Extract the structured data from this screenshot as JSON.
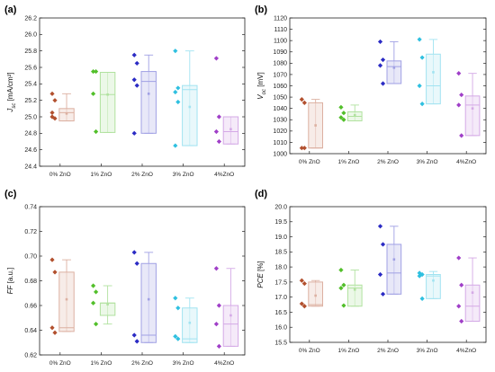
{
  "chart_data": [
    {
      "type": "box",
      "panel_label": "(a)",
      "ylabel": "J_sc [mA/cm²]",
      "ylabel_main": "J",
      "ylabel_sub": "sc",
      "ylabel_rest": " [mA/cm²]",
      "categories": [
        "0% ZnO",
        "1% ZnO",
        "2% ZnO",
        "3% ZnO",
        "4%ZnO"
      ],
      "ylim": [
        24.4,
        26.2
      ],
      "yticks": [
        "24.4",
        "24.6",
        "24.8",
        "25.0",
        "25.2",
        "25.4",
        "25.6",
        "25.8",
        "26.0",
        "26.2"
      ],
      "colors": [
        "#b2502e",
        "#52bf2a",
        "#2b2bc4",
        "#2fc0e0",
        "#a03fc8"
      ],
      "boxes": [
        {
          "q1": 24.95,
          "median": 25.05,
          "q3": 25.1,
          "whisker_low": 24.95,
          "whisker_high": 25.28,
          "mean": 25.04,
          "points": [
            25.28,
            25.2,
            25.05,
            24.98,
            25.0
          ]
        },
        {
          "q1": 24.81,
          "median": 25.27,
          "q3": 25.54,
          "whisker_low": 24.81,
          "whisker_high": 25.54,
          "mean": 25.27,
          "points": [
            25.55,
            25.55,
            25.28,
            24.82
          ]
        },
        {
          "q1": 24.8,
          "median": 25.43,
          "q3": 25.55,
          "whisker_low": 24.8,
          "whisker_high": 25.75,
          "mean": 25.28,
          "points": [
            25.75,
            25.65,
            25.45,
            25.38,
            24.8
          ]
        },
        {
          "q1": 24.65,
          "median": 25.33,
          "q3": 25.38,
          "whisker_low": 24.65,
          "whisker_high": 25.8,
          "mean": 25.12,
          "points": [
            25.8,
            25.35,
            25.3,
            25.18,
            24.65
          ]
        },
        {
          "q1": 24.67,
          "median": 24.82,
          "q3": 25.0,
          "whisker_low": 24.67,
          "whisker_high": 25.0,
          "mean": 24.85,
          "points": [
            25.71,
            25.0,
            24.82,
            24.7
          ]
        }
      ]
    },
    {
      "type": "box",
      "panel_label": "(b)",
      "ylabel": "V_oc [mV]",
      "ylabel_main": "V",
      "ylabel_sub": "oc",
      "ylabel_rest": " [mV]",
      "categories": [
        "0% ZnO",
        "1% ZnO",
        "2% ZnO",
        "3% ZnO",
        "4%ZnO"
      ],
      "ylim": [
        1000,
        1120
      ],
      "yticks": [
        "1000",
        "1010",
        "1020",
        "1030",
        "1040",
        "1050",
        "1060",
        "1070",
        "1080",
        "1090",
        "1100",
        "1110",
        "1120"
      ],
      "colors": [
        "#b2502e",
        "#52bf2a",
        "#2b2bc4",
        "#2fc0e0",
        "#a03fc8"
      ],
      "boxes": [
        {
          "q1": 1005,
          "median": 1005,
          "q3": 1045,
          "whisker_low": 1005,
          "whisker_high": 1048,
          "mean": 1025,
          "points": [
            1048,
            1045,
            1005,
            1005
          ]
        },
        {
          "q1": 1029,
          "median": 1033,
          "q3": 1037,
          "whisker_low": 1029,
          "whisker_high": 1043,
          "mean": 1034,
          "points": [
            1041,
            1036,
            1032,
            1030
          ]
        },
        {
          "q1": 1062,
          "median": 1077,
          "q3": 1082,
          "whisker_low": 1062,
          "whisker_high": 1099,
          "mean": 1076,
          "points": [
            1099,
            1083,
            1078,
            1062
          ]
        },
        {
          "q1": 1044,
          "median": 1060,
          "q3": 1088,
          "whisker_low": 1044,
          "whisker_high": 1101,
          "mean": 1072,
          "points": [
            1101,
            1085,
            1060,
            1044
          ]
        },
        {
          "q1": 1016,
          "median": 1043,
          "q3": 1051,
          "whisker_low": 1016,
          "whisker_high": 1071,
          "mean": 1040,
          "points": [
            1071,
            1052,
            1043,
            1016
          ]
        }
      ]
    },
    {
      "type": "box",
      "panel_label": "(c)",
      "ylabel": "FF [a.u.]",
      "ylabel_main": "FF",
      "ylabel_sub": "",
      "ylabel_rest": " [a.u.]",
      "categories": [
        "0% ZnO",
        "1% ZnO",
        "2% ZnO",
        "3% ZnO",
        "4%ZnO"
      ],
      "ylim": [
        0.62,
        0.74
      ],
      "yticks": [
        "0.62",
        "0.64",
        "0.66",
        "0.68",
        "0.70",
        "0.72",
        "0.74"
      ],
      "colors": [
        "#b2502e",
        "#52bf2a",
        "#2b2bc4",
        "#2fc0e0",
        "#a03fc8"
      ],
      "boxes": [
        {
          "q1": 0.639,
          "median": 0.642,
          "q3": 0.687,
          "whisker_low": 0.639,
          "whisker_high": 0.697,
          "mean": 0.665,
          "points": [
            0.697,
            0.687,
            0.642,
            0.638
          ]
        },
        {
          "q1": 0.652,
          "median": 0.662,
          "q3": 0.662,
          "whisker_low": 0.645,
          "whisker_high": 0.676,
          "mean": 0.661,
          "points": [
            0.676,
            0.671,
            0.662,
            0.645
          ]
        },
        {
          "q1": 0.63,
          "median": 0.636,
          "q3": 0.694,
          "whisker_low": 0.63,
          "whisker_high": 0.703,
          "mean": 0.665,
          "points": [
            0.703,
            0.694,
            0.636,
            0.631
          ]
        },
        {
          "q1": 0.63,
          "median": 0.633,
          "q3": 0.658,
          "whisker_low": 0.63,
          "whisker_high": 0.666,
          "mean": 0.646,
          "points": [
            0.666,
            0.658,
            0.635,
            0.633
          ]
        },
        {
          "q1": 0.627,
          "median": 0.645,
          "q3": 0.66,
          "whisker_low": 0.627,
          "whisker_high": 0.69,
          "mean": 0.652,
          "points": [
            0.69,
            0.66,
            0.645,
            0.627
          ]
        }
      ]
    },
    {
      "type": "box",
      "panel_label": "(d)",
      "ylabel": "PCE [%]",
      "ylabel_main": "PCE",
      "ylabel_sub": "",
      "ylabel_rest": " [%]",
      "categories": [
        "0% ZnO",
        "1% ZnO",
        "2% ZnO",
        "3% ZnO",
        "4%ZnO"
      ],
      "ylim": [
        15.5,
        20.0
      ],
      "yticks": [
        "15.5",
        "16.0",
        "16.5",
        "17.0",
        "17.5",
        "18.0",
        "18.5",
        "19.0",
        "19.5",
        "20.0"
      ],
      "colors": [
        "#b2502e",
        "#52bf2a",
        "#2b2bc4",
        "#2fc0e0",
        "#a03fc8"
      ],
      "boxes": [
        {
          "q1": 16.7,
          "median": 16.75,
          "q3": 17.5,
          "whisker_low": 16.7,
          "whisker_high": 17.55,
          "mean": 17.05,
          "points": [
            17.55,
            17.45,
            16.78,
            16.7
          ]
        },
        {
          "q1": 16.7,
          "median": 17.3,
          "q3": 17.4,
          "whisker_low": 16.7,
          "whisker_high": 17.9,
          "mean": 17.25,
          "points": [
            17.9,
            17.4,
            17.3,
            16.72
          ]
        },
        {
          "q1": 17.1,
          "median": 17.8,
          "q3": 18.75,
          "whisker_low": 17.1,
          "whisker_high": 19.35,
          "mean": 18.25,
          "points": [
            19.35,
            18.75,
            17.75,
            17.1
          ]
        },
        {
          "q1": 16.95,
          "median": 17.7,
          "q3": 17.75,
          "whisker_low": 16.95,
          "whisker_high": 17.85,
          "mean": 17.55,
          "points": [
            17.8,
            17.75,
            17.7,
            16.95
          ]
        },
        {
          "q1": 16.2,
          "median": 16.7,
          "q3": 17.4,
          "whisker_low": 16.2,
          "whisker_high": 18.3,
          "mean": 17.15,
          "points": [
            18.3,
            17.4,
            16.7,
            16.2
          ]
        }
      ]
    }
  ]
}
